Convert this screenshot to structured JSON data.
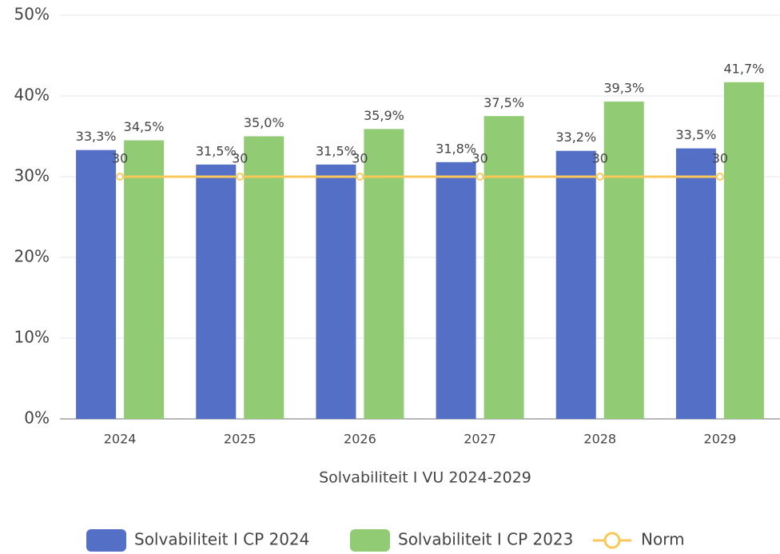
{
  "chart_data": {
    "type": "bar",
    "xlabel": "Solvabiliteit I VU 2024-2029",
    "categories": [
      "2024",
      "2025",
      "2026",
      "2027",
      "2028",
      "2029"
    ],
    "series": [
      {
        "name": "Solvabiliteit I CP 2024",
        "color": "#5470c6",
        "values": [
          33.3,
          31.5,
          31.5,
          31.8,
          33.2,
          33.5
        ],
        "value_labels": [
          "33,3%",
          "31,5%",
          "31,5%",
          "31,8%",
          "33,2%",
          "33,5%"
        ]
      },
      {
        "name": "Solvabiliteit I CP 2023",
        "color": "#91cc75",
        "values": [
          34.5,
          35.0,
          35.9,
          37.5,
          39.3,
          41.7
        ],
        "value_labels": [
          "34,5%",
          "35,0%",
          "35,9%",
          "37,5%",
          "39,3%",
          "41,7%"
        ]
      },
      {
        "name": "Norm",
        "type": "line",
        "color": "#fac858",
        "values": [
          30,
          30,
          30,
          30,
          30,
          30
        ]
      }
    ],
    "ylim": [
      0,
      50
    ],
    "yticks": [
      {
        "value": 0,
        "label": "0%"
      },
      {
        "value": 10,
        "label": "10%"
      },
      {
        "value": 20,
        "label": "20%"
      },
      {
        "value": 30,
        "label": "30%"
      },
      {
        "value": 40,
        "label": "40%"
      },
      {
        "value": 50,
        "label": "50%"
      }
    ],
    "grid": true,
    "legend": "bottom"
  }
}
